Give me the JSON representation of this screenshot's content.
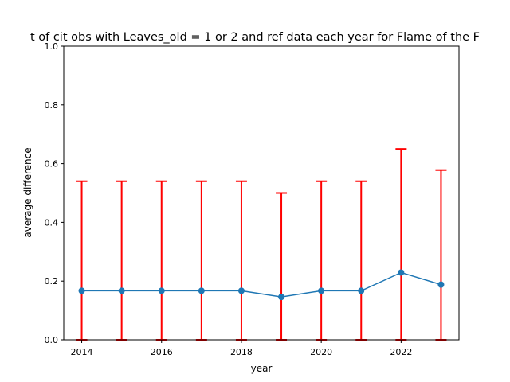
{
  "chart_data": {
    "type": "line",
    "title": "t of cit obs with Leaves_old = 1 or 2 and ref data each year for Flame of the F",
    "xlabel": "year",
    "ylabel": "average difference",
    "x": [
      2014,
      2015,
      2016,
      2017,
      2018,
      2019,
      2020,
      2021,
      2022,
      2023
    ],
    "series": [
      {
        "values": [
          0.167,
          0.167,
          0.167,
          0.167,
          0.167,
          0.146,
          0.167,
          0.167,
          0.229,
          0.188
        ],
        "error_upper": [
          0.54,
          0.54,
          0.54,
          0.54,
          0.54,
          0.5,
          0.54,
          0.54,
          0.65,
          0.578
        ],
        "error_lower": [
          0.0,
          0.0,
          0.0,
          0.0,
          0.0,
          0.0,
          0.0,
          0.0,
          0.0,
          0.0
        ],
        "color": "#1f77b4",
        "error_color": "#ff0000"
      }
    ],
    "xlim": [
      2013.55,
      2023.45
    ],
    "ylim": [
      0,
      1
    ],
    "xticks": [
      2014,
      2016,
      2018,
      2020,
      2022
    ],
    "yticks": [
      0.0,
      0.2,
      0.4,
      0.6,
      0.8,
      1.0
    ],
    "xtick_labels": [
      "2014",
      "2016",
      "2018",
      "2020",
      "2022"
    ],
    "ytick_labels": [
      "0.0",
      "0.2",
      "0.4",
      "0.6",
      "0.8",
      "1.0"
    ],
    "grid": false,
    "legend": "none"
  }
}
